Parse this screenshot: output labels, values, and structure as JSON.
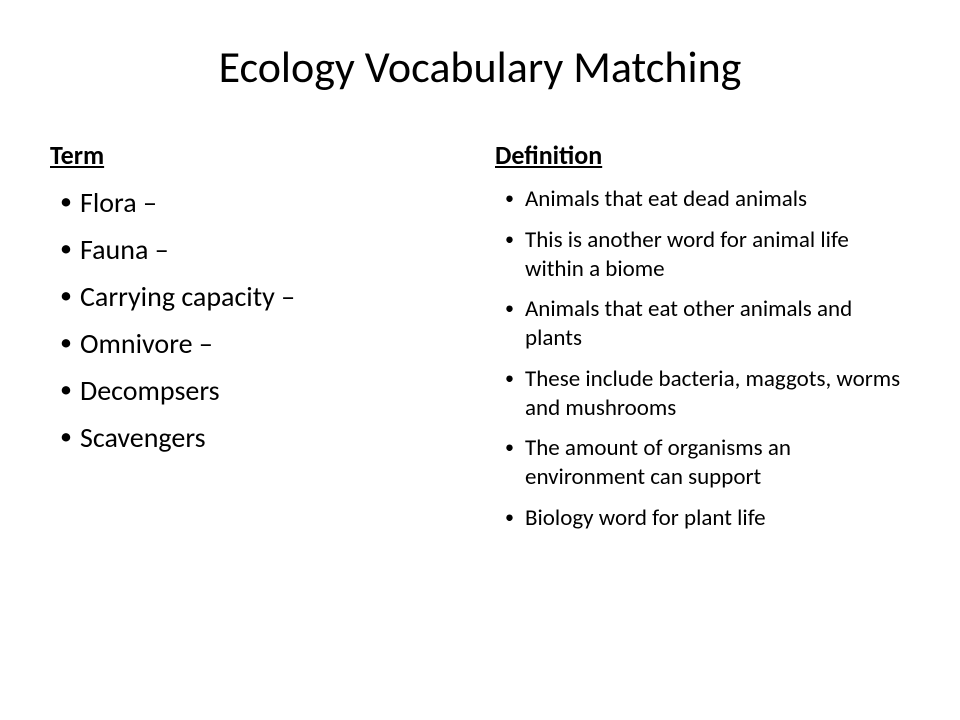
{
  "title": "Ecology Vocabulary Matching",
  "columns": {
    "left": {
      "header": "Term",
      "items": [
        "Flora –",
        "Fauna –",
        "Carrying capacity –",
        "Omnivore –",
        "Decompsers",
        "Scavengers"
      ]
    },
    "right": {
      "header": "Definition",
      "items": [
        "Animals that eat dead animals",
        "This is another word for animal life within a biome",
        "Animals that eat other animals and plants",
        "These include bacteria, maggots, worms and mushrooms",
        "The amount of organisms an environment can support",
        "Biology word for plant life"
      ]
    }
  },
  "styling": {
    "background_color": "#ffffff",
    "text_color": "#000000",
    "title_fontsize": 44,
    "header_fontsize": 26,
    "term_fontsize": 28,
    "definition_fontsize": 23,
    "font_family": "Calibri"
  }
}
